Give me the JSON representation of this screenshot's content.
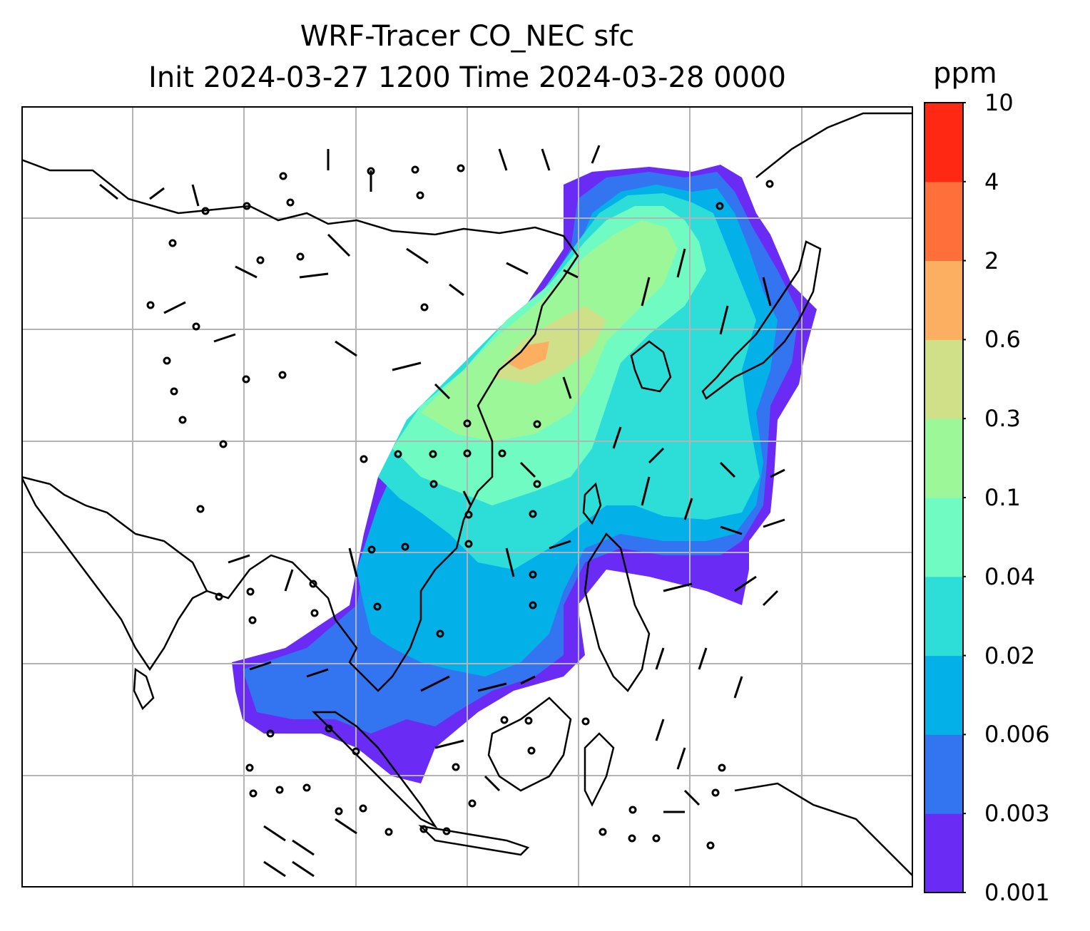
{
  "title": {
    "line1": "WRF-Tracer CO_NEC sfc",
    "line2": "Init 2024-03-27 1200 Time 2024-03-28 0000"
  },
  "colorbar": {
    "unit": "ppm",
    "levels": [
      "0.001",
      "0.003",
      "0.006",
      "0.02",
      "0.04",
      "0.1",
      "0.3",
      "0.6",
      "2",
      "4",
      "10"
    ],
    "colors": [
      "#6a2cf5",
      "#3374f1",
      "#04b0e8",
      "#2dddd7",
      "#6ffbc2",
      "#9bf797",
      "#cfe088",
      "#fdaf61",
      "#fe6f3a",
      "#ff2813"
    ]
  },
  "map": {
    "region": "East and Southeast Asia",
    "gridlines": true,
    "overlays": [
      "coastlines",
      "country borders",
      "surface wind barbs",
      "CO_NEC tracer concentration shading"
    ]
  }
}
